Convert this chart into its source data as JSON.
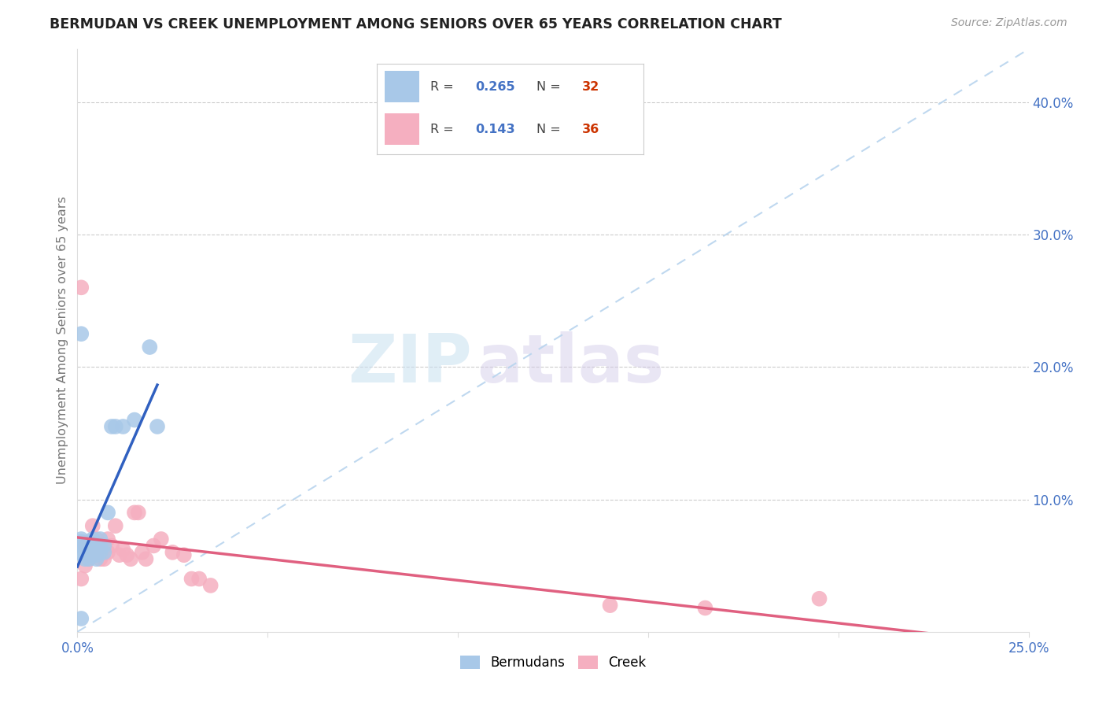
{
  "title": "BERMUDAN VS CREEK UNEMPLOYMENT AMONG SENIORS OVER 65 YEARS CORRELATION CHART",
  "source": "Source: ZipAtlas.com",
  "ylabel": "Unemployment Among Seniors over 65 years",
  "xlim": [
    0,
    0.25
  ],
  "ylim": [
    0,
    0.44
  ],
  "xtick_positions": [
    0.0,
    0.05,
    0.1,
    0.15,
    0.2,
    0.25
  ],
  "xtick_labels": [
    "0.0%",
    "",
    "",
    "",
    "",
    "25.0%"
  ],
  "yticks_right": [
    0.1,
    0.2,
    0.3,
    0.4
  ],
  "background_color": "#ffffff",
  "watermark_zip": "ZIP",
  "watermark_atlas": "atlas",
  "legend_R1": "0.265",
  "legend_N1": "32",
  "legend_R2": "0.143",
  "legend_N2": "36",
  "bermudans_color": "#a8c8e8",
  "creek_color": "#f5afc0",
  "trend_blue": "#3060c0",
  "trend_pink": "#e06080",
  "ref_line_color": "#b8d4ee",
  "bermudans_x": [
    0.0005,
    0.001,
    0.001,
    0.001,
    0.002,
    0.002,
    0.002,
    0.003,
    0.003,
    0.003,
    0.003,
    0.004,
    0.004,
    0.004,
    0.005,
    0.005,
    0.005,
    0.005,
    0.006,
    0.006,
    0.006,
    0.007,
    0.007,
    0.008,
    0.009,
    0.01,
    0.012,
    0.015,
    0.019,
    0.021,
    0.001,
    0.001
  ],
  "bermudans_y": [
    0.06,
    0.065,
    0.068,
    0.07,
    0.055,
    0.06,
    0.065,
    0.058,
    0.062,
    0.055,
    0.068,
    0.06,
    0.065,
    0.07,
    0.058,
    0.062,
    0.065,
    0.055,
    0.06,
    0.065,
    0.07,
    0.06,
    0.065,
    0.09,
    0.155,
    0.155,
    0.155,
    0.16,
    0.215,
    0.155,
    0.01,
    0.225
  ],
  "creek_x": [
    0.001,
    0.001,
    0.002,
    0.002,
    0.003,
    0.003,
    0.004,
    0.004,
    0.005,
    0.005,
    0.006,
    0.006,
    0.007,
    0.007,
    0.008,
    0.008,
    0.009,
    0.01,
    0.011,
    0.012,
    0.013,
    0.014,
    0.015,
    0.016,
    0.017,
    0.018,
    0.02,
    0.022,
    0.025,
    0.028,
    0.03,
    0.032,
    0.035,
    0.14,
    0.165,
    0.195
  ],
  "creek_y": [
    0.04,
    0.26,
    0.05,
    0.065,
    0.055,
    0.06,
    0.065,
    0.08,
    0.06,
    0.07,
    0.055,
    0.06,
    0.055,
    0.065,
    0.07,
    0.06,
    0.065,
    0.08,
    0.058,
    0.062,
    0.058,
    0.055,
    0.09,
    0.09,
    0.06,
    0.055,
    0.065,
    0.07,
    0.06,
    0.058,
    0.04,
    0.04,
    0.035,
    0.02,
    0.018,
    0.025
  ]
}
